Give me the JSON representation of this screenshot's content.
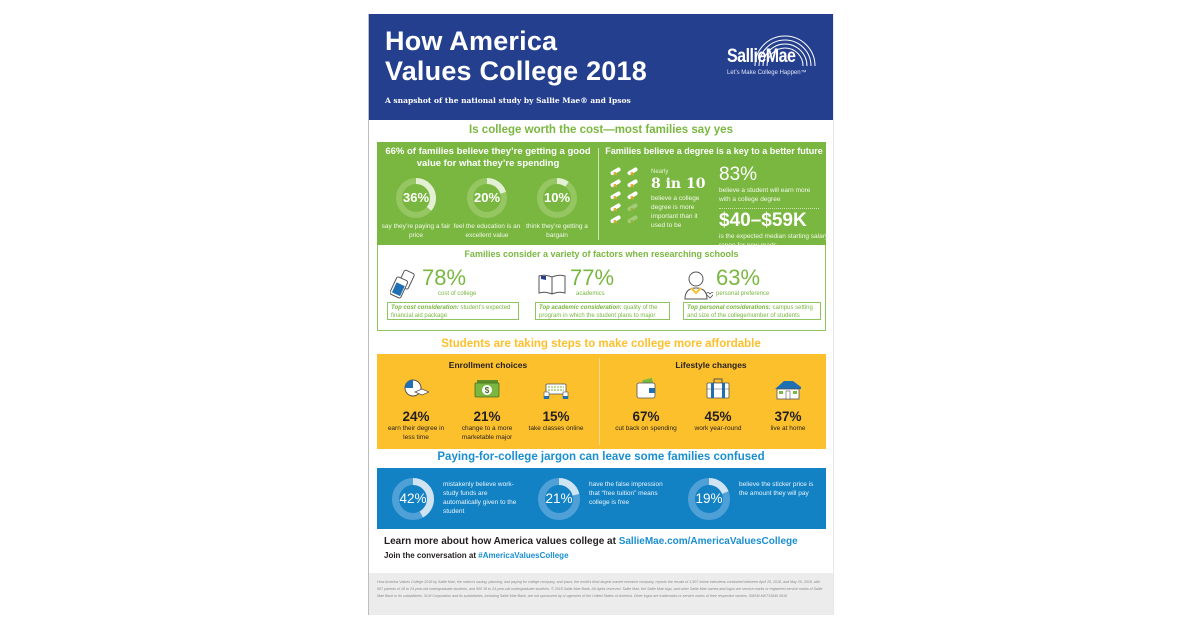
{
  "header": {
    "title_line1": "How America",
    "title_line2": "Values College 2018",
    "subtitle": "A snapshot of the national study by Sallie Mae® and Ipsos",
    "logo_name": "SallieMae",
    "logo_tagline": "Let’s Make College Happen™"
  },
  "colors": {
    "header_blue": "#253f8f",
    "green": "#7ab740",
    "yellow": "#fcc02d",
    "blue": "#1282c4",
    "link_blue": "#1a8fd0"
  },
  "section1": {
    "title": "Is college worth the cost—most families say yes",
    "value": {
      "title": "66% of families believe they’re getting a good value for what they’re spending",
      "items": [
        {
          "pct_label": "36%",
          "pct": 36,
          "caption": "say they’re paying a fair price"
        },
        {
          "pct_label": "20%",
          "pct": 20,
          "caption": "feel the education is an excellent value"
        },
        {
          "pct_label": "10%",
          "pct": 10,
          "caption": "think they’re getting a bargain"
        }
      ]
    },
    "future": {
      "title": "Families believe a degree is a key to a better future",
      "nearly": "Nearly",
      "ratio": "8 in 10",
      "ratio_filled": 8,
      "ratio_total": 10,
      "ratio_caption": "believe a college degree is more important than it used to be",
      "stat1": "83%",
      "stat1_caption": "believe a student will earn more with a college degree",
      "stat2": "$40–$59K",
      "stat2_caption": "is the expected median starting salary range for new grads"
    },
    "factors": {
      "title": "Families consider a variety of factors when researching schools",
      "items": [
        {
          "icon": "price-tag-icon",
          "pct": "78%",
          "label": "cost of college",
          "note_bold": "Top cost consideration:",
          "note": " student’s expected financial aid package"
        },
        {
          "icon": "open-book-icon",
          "pct": "77%",
          "label": "academics",
          "note_bold": "Top academic consideration:",
          "note": " quality of the program in which the student plans to major"
        },
        {
          "icon": "person-heart-icon",
          "pct": "63%",
          "label": "personal preference",
          "note_bold": "Top personal considerations:",
          "note": " campus setting and size of the college/number of students"
        }
      ]
    }
  },
  "section2": {
    "title": "Students are taking steps to make college more affordable",
    "enrollment": {
      "title": "Enrollment choices",
      "items": [
        {
          "icon": "clock-grad-cap-icon",
          "pct": "24%",
          "label": "earn their degree in less time"
        },
        {
          "icon": "money-bill-icon",
          "pct": "21%",
          "label": "change to a more marketable major"
        },
        {
          "icon": "keyboard-typing-icon",
          "pct": "15%",
          "label": "take classes online"
        }
      ]
    },
    "lifestyle": {
      "title": "Lifestyle changes",
      "items": [
        {
          "icon": "wallet-icon",
          "pct": "67%",
          "label": "cut back on spending"
        },
        {
          "icon": "briefcase-icon",
          "pct": "45%",
          "label": "work year-round"
        },
        {
          "icon": "house-icon",
          "pct": "37%",
          "label": "live at home"
        }
      ]
    }
  },
  "section3": {
    "title": "Paying-for-college jargon can leave some families confused",
    "items": [
      {
        "pct_label": "42%",
        "pct": 42,
        "caption": "mistakenly believe work-study funds are automatically given to the student"
      },
      {
        "pct_label": "21%",
        "pct": 21,
        "caption": "have the false impression that “free tuition” means college is free"
      },
      {
        "pct_label": "19%",
        "pct": 19,
        "caption": "believe the sticker price is the amount they will pay"
      }
    ]
  },
  "footer": {
    "learn_text": "Learn more about how America values college at ",
    "learn_link": "SallieMae.com/AmericaValuesCollege",
    "join_text": "Join the conversation at ",
    "join_link": "#AmericaValuesCollege",
    "legal": "How America Values College 2018 by Sallie Mae, the nation’s saving, planning, and paying for college company, and Ipsos, the world’s third-largest market research company, reports the results of 1,907 online interviews conducted between April 20, 2018, and May 25, 2018, with 957 parents of 18 to 24-year-old undergraduate students, and 950 18 to 24-year-old undergraduate students. © 2018 Sallie Mae Bank. All rights reserved. Sallie Mae, the Sallie Mae logo, and other Sallie Mae names and logos are service marks or registered service marks of Sallie Mae Bank or its subsidiaries. SLM Corporation and its subsidiaries, including Sallie Mae Bank, are not sponsored by or agencies of the United States of America. Other logos are trademarks or service marks of their respective owners. SMSM MKT13640 0818"
  }
}
